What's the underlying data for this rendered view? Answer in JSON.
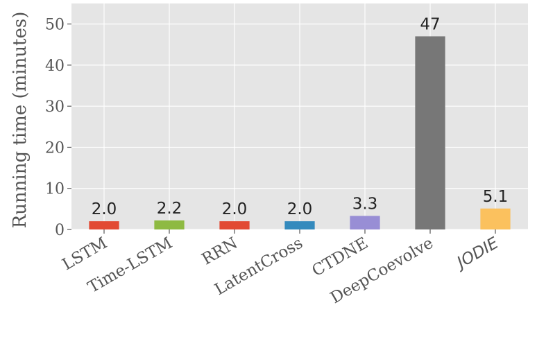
{
  "chart_data": {
    "type": "bar",
    "title": "",
    "xlabel": "",
    "ylabel": "Running time (minutes)",
    "ylim": [
      0,
      55
    ],
    "yticks": [
      0,
      10,
      20,
      30,
      40,
      50
    ],
    "grid": true,
    "categories": [
      "LSTM",
      "Time-LSTM",
      "RRN",
      "LatentCross",
      "CTDNE",
      "DeepCoevolve",
      "JODIE"
    ],
    "values": [
      2.0,
      2.2,
      2.0,
      2.0,
      3.3,
      47,
      5.1
    ],
    "value_labels": [
      "2.0",
      "2.2",
      "2.0",
      "2.0",
      "3.3",
      "47",
      "5.1"
    ],
    "colors": [
      "#E24A33",
      "#8EBA42",
      "#E24A33",
      "#348ABD",
      "#988ED5",
      "#777777",
      "#FBC15E"
    ],
    "italic_categories": [
      "JODIE"
    ],
    "background": "#E5E5E5",
    "grid_color": "#FFFFFF"
  }
}
